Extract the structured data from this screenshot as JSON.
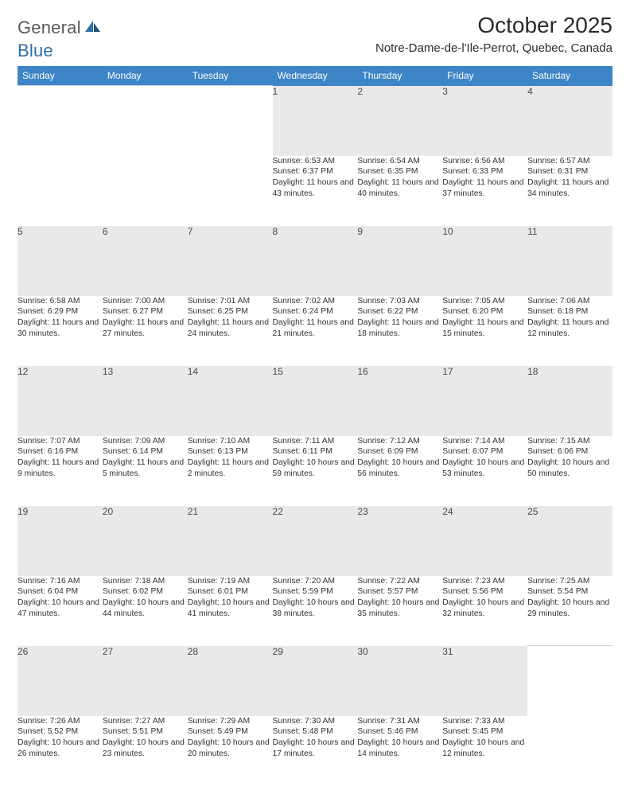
{
  "brand": {
    "general": "General",
    "blue": "Blue"
  },
  "title": "October 2025",
  "location": "Notre-Dame-de-l'Ile-Perrot, Quebec, Canada",
  "colors": {
    "header_bg": "#3d85c6",
    "header_text": "#ffffff",
    "daynum_bg": "#e9e9e9",
    "body_text": "#333333",
    "logo_gray": "#5a5a5a",
    "logo_blue": "#2f6fa8"
  },
  "days_of_week": [
    "Sunday",
    "Monday",
    "Tuesday",
    "Wednesday",
    "Thursday",
    "Friday",
    "Saturday"
  ],
  "first_weekday_index": 3,
  "days": [
    {
      "n": 1,
      "sunrise": "6:53 AM",
      "sunset": "6:37 PM",
      "dl_h": 11,
      "dl_m": 43
    },
    {
      "n": 2,
      "sunrise": "6:54 AM",
      "sunset": "6:35 PM",
      "dl_h": 11,
      "dl_m": 40
    },
    {
      "n": 3,
      "sunrise": "6:56 AM",
      "sunset": "6:33 PM",
      "dl_h": 11,
      "dl_m": 37
    },
    {
      "n": 4,
      "sunrise": "6:57 AM",
      "sunset": "6:31 PM",
      "dl_h": 11,
      "dl_m": 34
    },
    {
      "n": 5,
      "sunrise": "6:58 AM",
      "sunset": "6:29 PM",
      "dl_h": 11,
      "dl_m": 30
    },
    {
      "n": 6,
      "sunrise": "7:00 AM",
      "sunset": "6:27 PM",
      "dl_h": 11,
      "dl_m": 27
    },
    {
      "n": 7,
      "sunrise": "7:01 AM",
      "sunset": "6:25 PM",
      "dl_h": 11,
      "dl_m": 24
    },
    {
      "n": 8,
      "sunrise": "7:02 AM",
      "sunset": "6:24 PM",
      "dl_h": 11,
      "dl_m": 21
    },
    {
      "n": 9,
      "sunrise": "7:03 AM",
      "sunset": "6:22 PM",
      "dl_h": 11,
      "dl_m": 18
    },
    {
      "n": 10,
      "sunrise": "7:05 AM",
      "sunset": "6:20 PM",
      "dl_h": 11,
      "dl_m": 15
    },
    {
      "n": 11,
      "sunrise": "7:06 AM",
      "sunset": "6:18 PM",
      "dl_h": 11,
      "dl_m": 12
    },
    {
      "n": 12,
      "sunrise": "7:07 AM",
      "sunset": "6:16 PM",
      "dl_h": 11,
      "dl_m": 9
    },
    {
      "n": 13,
      "sunrise": "7:09 AM",
      "sunset": "6:14 PM",
      "dl_h": 11,
      "dl_m": 5
    },
    {
      "n": 14,
      "sunrise": "7:10 AM",
      "sunset": "6:13 PM",
      "dl_h": 11,
      "dl_m": 2
    },
    {
      "n": 15,
      "sunrise": "7:11 AM",
      "sunset": "6:11 PM",
      "dl_h": 10,
      "dl_m": 59
    },
    {
      "n": 16,
      "sunrise": "7:12 AM",
      "sunset": "6:09 PM",
      "dl_h": 10,
      "dl_m": 56
    },
    {
      "n": 17,
      "sunrise": "7:14 AM",
      "sunset": "6:07 PM",
      "dl_h": 10,
      "dl_m": 53
    },
    {
      "n": 18,
      "sunrise": "7:15 AM",
      "sunset": "6:06 PM",
      "dl_h": 10,
      "dl_m": 50
    },
    {
      "n": 19,
      "sunrise": "7:16 AM",
      "sunset": "6:04 PM",
      "dl_h": 10,
      "dl_m": 47
    },
    {
      "n": 20,
      "sunrise": "7:18 AM",
      "sunset": "6:02 PM",
      "dl_h": 10,
      "dl_m": 44
    },
    {
      "n": 21,
      "sunrise": "7:19 AM",
      "sunset": "6:01 PM",
      "dl_h": 10,
      "dl_m": 41
    },
    {
      "n": 22,
      "sunrise": "7:20 AM",
      "sunset": "5:59 PM",
      "dl_h": 10,
      "dl_m": 38
    },
    {
      "n": 23,
      "sunrise": "7:22 AM",
      "sunset": "5:57 PM",
      "dl_h": 10,
      "dl_m": 35
    },
    {
      "n": 24,
      "sunrise": "7:23 AM",
      "sunset": "5:56 PM",
      "dl_h": 10,
      "dl_m": 32
    },
    {
      "n": 25,
      "sunrise": "7:25 AM",
      "sunset": "5:54 PM",
      "dl_h": 10,
      "dl_m": 29
    },
    {
      "n": 26,
      "sunrise": "7:26 AM",
      "sunset": "5:52 PM",
      "dl_h": 10,
      "dl_m": 26
    },
    {
      "n": 27,
      "sunrise": "7:27 AM",
      "sunset": "5:51 PM",
      "dl_h": 10,
      "dl_m": 23
    },
    {
      "n": 28,
      "sunrise": "7:29 AM",
      "sunset": "5:49 PM",
      "dl_h": 10,
      "dl_m": 20
    },
    {
      "n": 29,
      "sunrise": "7:30 AM",
      "sunset": "5:48 PM",
      "dl_h": 10,
      "dl_m": 17
    },
    {
      "n": 30,
      "sunrise": "7:31 AM",
      "sunset": "5:46 PM",
      "dl_h": 10,
      "dl_m": 14
    },
    {
      "n": 31,
      "sunrise": "7:33 AM",
      "sunset": "5:45 PM",
      "dl_h": 10,
      "dl_m": 12
    }
  ],
  "labels": {
    "sunrise": "Sunrise:",
    "sunset": "Sunset:",
    "daylight": "Daylight:",
    "hours_word": "hours",
    "and_word": "and",
    "minutes_word": "minutes."
  }
}
